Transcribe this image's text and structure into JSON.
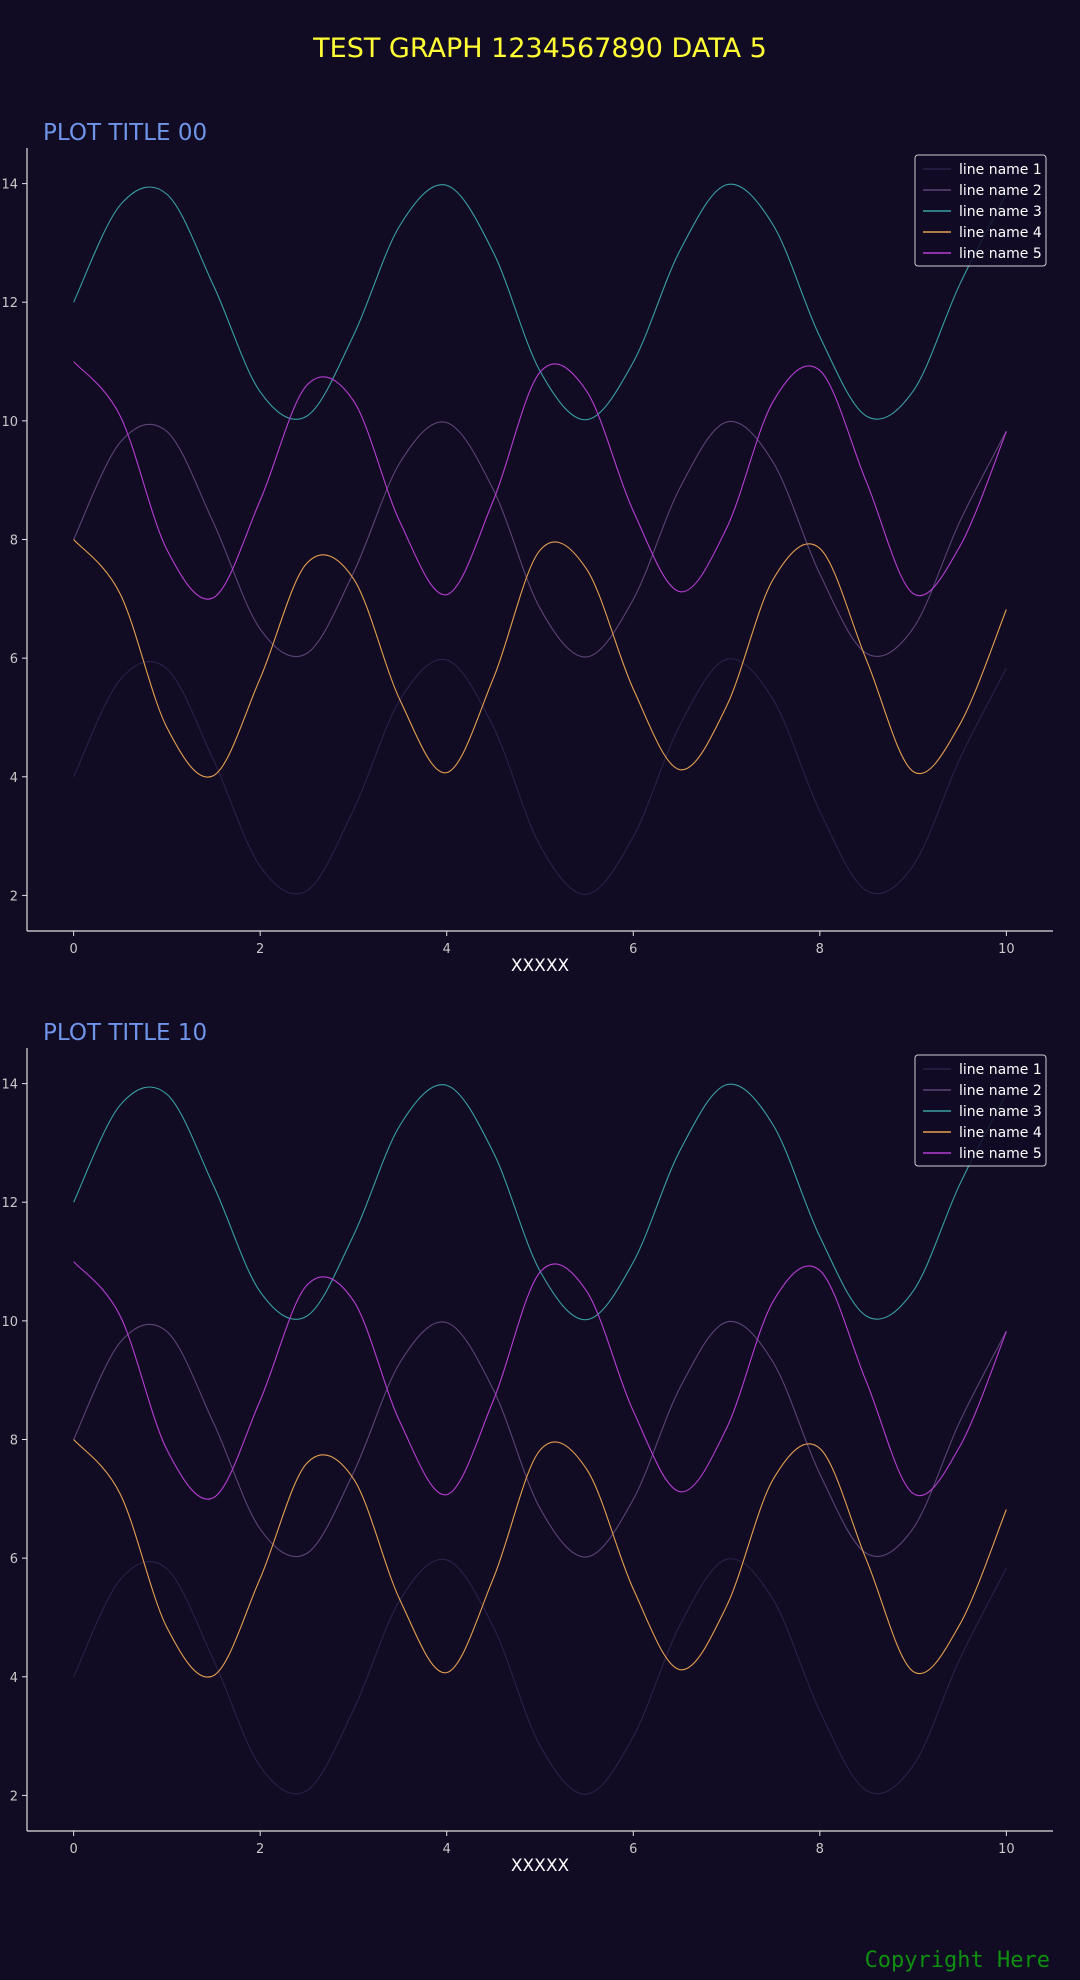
{
  "title": "TEST GRAPH 1234567890 DATA 5",
  "copyright": "Copyright Here",
  "colors": {
    "background": "#110b24",
    "title": "#ffff33",
    "subplot_title": "#6f94e8",
    "axis": "#e0e0e0",
    "tick_label": "#c8c8c8",
    "copyright": "#0f8f0f"
  },
  "chart_data": [
    {
      "type": "line",
      "title": "PLOT TITLE 00",
      "xlabel": "XXXXX",
      "ylabel": "",
      "xlim": [
        -0.5,
        10.5
      ],
      "ylim": [
        1.4,
        14.6
      ],
      "xticks": [
        0,
        2,
        4,
        6,
        8,
        10
      ],
      "yticks": [
        2,
        4,
        6,
        8,
        10,
        12,
        14
      ],
      "grid": false,
      "legend_position": "top-right",
      "x": [
        0,
        0.5,
        1,
        1.5,
        2,
        2.5,
        3,
        3.5,
        4,
        4.5,
        5,
        5.5,
        6,
        6.5,
        7,
        7.5,
        8,
        8.5,
        9,
        9.5,
        10
      ],
      "series": [
        {
          "name": "line name 1",
          "color": "#2a2247",
          "values": [
            4.0,
            5.64,
            5.82,
            4.28,
            2.49,
            2.08,
            3.44,
            5.3,
            5.97,
            4.84,
            2.84,
            2.02,
            2.99,
            4.87,
            5.98,
            5.3,
            3.42,
            2.08,
            2.5,
            4.3,
            5.83
          ]
        },
        {
          "name": "line name 2",
          "color": "#5c4476",
          "values": [
            8.0,
            9.64,
            9.82,
            8.28,
            6.49,
            6.08,
            7.44,
            9.3,
            9.97,
            8.84,
            6.84,
            6.02,
            6.99,
            8.87,
            9.98,
            9.3,
            7.42,
            6.08,
            6.5,
            8.3,
            9.83
          ]
        },
        {
          "name": "line name 3",
          "color": "#3aa0a4",
          "values": [
            12.0,
            13.64,
            13.82,
            12.28,
            10.49,
            10.08,
            11.44,
            13.3,
            13.97,
            12.84,
            10.84,
            10.02,
            10.99,
            12.87,
            13.98,
            13.3,
            11.42,
            10.08,
            10.5,
            12.3,
            13.83
          ]
        },
        {
          "name": "line name 4",
          "color": "#e5a050",
          "values": [
            8.0,
            7.08,
            4.83,
            4.02,
            5.66,
            7.6,
            7.34,
            5.29,
            4.07,
            5.66,
            7.82,
            7.5,
            5.48,
            4.12,
            5.19,
            7.33,
            7.85,
            5.97,
            4.09,
            4.88,
            6.82
          ]
        },
        {
          "name": "line name 5",
          "color": "#b63ed2",
          "values": [
            11.0,
            10.08,
            7.83,
            7.02,
            8.66,
            10.6,
            10.34,
            8.29,
            7.07,
            8.66,
            10.82,
            10.5,
            8.48,
            7.12,
            8.19,
            10.33,
            10.85,
            8.97,
            7.09,
            7.88,
            9.82
          ]
        }
      ]
    },
    {
      "type": "line",
      "title": "PLOT TITLE 10",
      "xlabel": "XXXXX",
      "ylabel": "",
      "xlim": [
        -0.5,
        10.5
      ],
      "ylim": [
        1.4,
        14.6
      ],
      "xticks": [
        0,
        2,
        4,
        6,
        8,
        10
      ],
      "yticks": [
        2,
        4,
        6,
        8,
        10,
        12,
        14
      ],
      "grid": false,
      "legend_position": "top-right",
      "x": [
        0,
        0.5,
        1,
        1.5,
        2,
        2.5,
        3,
        3.5,
        4,
        4.5,
        5,
        5.5,
        6,
        6.5,
        7,
        7.5,
        8,
        8.5,
        9,
        9.5,
        10
      ],
      "series": [
        {
          "name": "line name 1",
          "color": "#2a2247",
          "values": [
            4.0,
            5.64,
            5.82,
            4.28,
            2.49,
            2.08,
            3.44,
            5.3,
            5.97,
            4.84,
            2.84,
            2.02,
            2.99,
            4.87,
            5.98,
            5.3,
            3.42,
            2.08,
            2.5,
            4.3,
            5.83
          ]
        },
        {
          "name": "line name 2",
          "color": "#5c4476",
          "values": [
            8.0,
            9.64,
            9.82,
            8.28,
            6.49,
            6.08,
            7.44,
            9.3,
            9.97,
            8.84,
            6.84,
            6.02,
            6.99,
            8.87,
            9.98,
            9.3,
            7.42,
            6.08,
            6.5,
            8.3,
            9.83
          ]
        },
        {
          "name": "line name 3",
          "color": "#3aa0a4",
          "values": [
            12.0,
            13.64,
            13.82,
            12.28,
            10.49,
            10.08,
            11.44,
            13.3,
            13.97,
            12.84,
            10.84,
            10.02,
            10.99,
            12.87,
            13.98,
            13.3,
            11.42,
            10.08,
            10.5,
            12.3,
            13.83
          ]
        },
        {
          "name": "line name 4",
          "color": "#e5a050",
          "values": [
            8.0,
            7.08,
            4.83,
            4.02,
            5.66,
            7.6,
            7.34,
            5.29,
            4.07,
            5.66,
            7.82,
            7.5,
            5.48,
            4.12,
            5.19,
            7.33,
            7.85,
            5.97,
            4.09,
            4.88,
            6.82
          ]
        },
        {
          "name": "line name 5",
          "color": "#b63ed2",
          "values": [
            11.0,
            10.08,
            7.83,
            7.02,
            8.66,
            10.6,
            10.34,
            8.29,
            7.07,
            8.66,
            10.82,
            10.5,
            8.48,
            7.12,
            8.19,
            10.33,
            10.85,
            8.97,
            7.09,
            7.88,
            9.82
          ]
        }
      ]
    }
  ]
}
